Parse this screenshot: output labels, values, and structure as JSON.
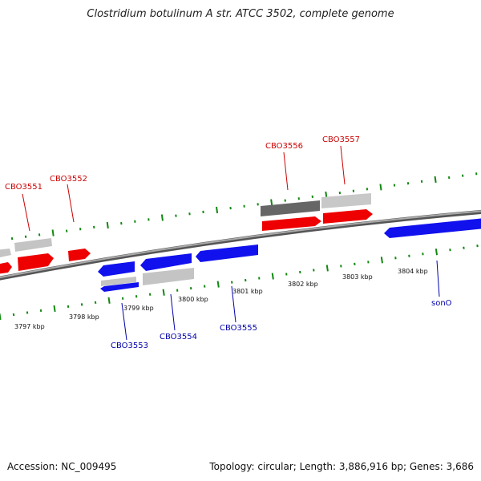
{
  "title": "Clostridium botulinum A str. ATCC 3502, complete genome",
  "footer": {
    "accession": "Accession: NC_009495",
    "genome_info": "Topology: circular; Length: 3,886,916 bp; Genes: 3,686"
  },
  "colors": {
    "forward": "#ff0000",
    "reverse": "#0000ee",
    "gray": "#bdbdbd",
    "dark_gray": "#6a6a6a",
    "ticks": "#118811",
    "backbone": "#8c8c8c",
    "label_forward": "#cc0000",
    "label_reverse": "#0000aa",
    "scale_label": "#111111"
  },
  "scale_labels": [
    "3797 kbp",
    "3798 kbp",
    "3799 kbp",
    "3800 kbp",
    "3801 kbp",
    "3802 kbp",
    "3803 kbp",
    "3804 kbp"
  ],
  "gene_labels": [
    {
      "name": "CBO3551",
      "strand": "forward"
    },
    {
      "name": "CBO3552",
      "strand": "forward"
    },
    {
      "name": "CBO3556",
      "strand": "forward"
    },
    {
      "name": "CBO3557",
      "strand": "forward"
    },
    {
      "name": "CBO3553",
      "strand": "reverse"
    },
    {
      "name": "CBO3554",
      "strand": "reverse"
    },
    {
      "name": "CBO3555",
      "strand": "reverse"
    },
    {
      "name": "sonO",
      "strand": "reverse"
    }
  ]
}
